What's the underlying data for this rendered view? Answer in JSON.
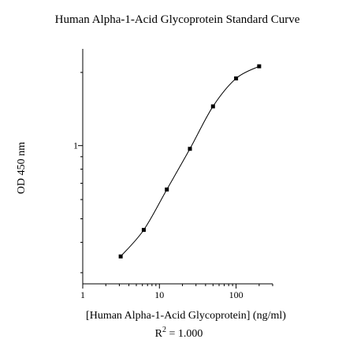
{
  "chart_data": {
    "type": "line",
    "title": "Human Alpha-1-Acid Glycoprotein  Standard Curve",
    "xlabel": "[Human Alpha-1-Acid Glycoprotein] (ng/ml)",
    "ylabel": "OD 450 nm",
    "x_scale": "log",
    "y_scale": "log",
    "xlim": [
      1,
      300
    ],
    "ylim": [
      0.27,
      2.5
    ],
    "x_ticks": [
      {
        "value": 1,
        "label": "1"
      },
      {
        "value": 10,
        "label": "10"
      },
      {
        "value": 100,
        "label": "100"
      }
    ],
    "y_ticks": [
      {
        "value": 1,
        "label": "1"
      }
    ],
    "series": [
      {
        "x": [
          3.125,
          6.25,
          12.5,
          25,
          50,
          100,
          200
        ],
        "y": [
          0.35,
          0.45,
          0.66,
          0.97,
          1.45,
          1.89,
          2.12
        ]
      }
    ],
    "grid": false,
    "legend": "none",
    "annotation": {
      "prefix": "R",
      "superscript": "2",
      "suffix": " = 1.000"
    },
    "colors": {
      "line": "#000000",
      "marker": "#000000",
      "axis": "#000000"
    }
  }
}
